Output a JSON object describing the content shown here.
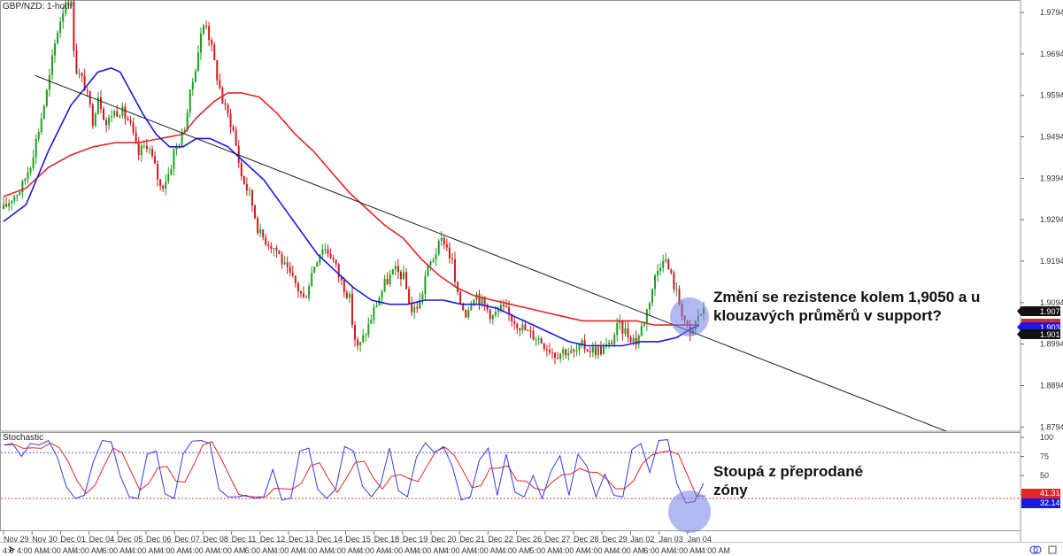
{
  "chart_data": [
    {
      "type": "candlestick",
      "title": "GBP/NZD: 1-hour",
      "y_ticks": [
        1.9794,
        1.9694,
        1.9594,
        1.9494,
        1.9394,
        1.9294,
        1.9194,
        1.9094,
        1.8994,
        1.8894,
        1.8794
      ],
      "ylim": [
        1.8784,
        1.9824
      ],
      "date_labels": [
        "Nov 29",
        "Nov 30",
        "Dec 01",
        "Dec 04",
        "Dec 05",
        "Dec 06",
        "Dec 07",
        "Dec 08",
        "Dec 11",
        "Dec 12",
        "Dec 13",
        "Dec 14",
        "Dec 15",
        "Dec 18",
        "Dec 19",
        "Dec 20",
        "Dec 21",
        "Dec 22",
        "Dec 26",
        "Dec 27",
        "Dec 28",
        "Dec 29",
        "Jan 02",
        "Jan 03",
        "Jan 04"
      ],
      "time_labels": [
        "4:0",
        "4:00 AM",
        "4:00 AM",
        "4:00 AM",
        "6:00 AM",
        "4:00 AM",
        "4:00 AM",
        "4:00 AM",
        "4:00 AM",
        "6:00 AM",
        "4:00 AM",
        "4:00 AM",
        "4:00 AM",
        "4:00 AM",
        "4:00 AM",
        "4:00 AM",
        "4:00 AM",
        "4:00 AM",
        "4:00 AM",
        "5:00 AM",
        "4:00 AM",
        "4:00 AM",
        "4:00 AM",
        "6:00 AM",
        "4:00 AM",
        "4:00 AM"
      ],
      "close_path": [
        [
          0,
          1.932
        ],
        [
          2,
          1.935
        ],
        [
          4,
          1.937
        ],
        [
          6,
          1.943
        ],
        [
          8,
          1.952
        ],
        [
          10,
          1.962
        ],
        [
          11,
          1.969
        ],
        [
          12,
          1.975
        ],
        [
          13,
          1.979
        ],
        [
          14,
          1.983
        ],
        [
          15,
          1.982
        ],
        [
          16,
          1.966
        ],
        [
          18,
          1.962
        ],
        [
          20,
          1.953
        ],
        [
          21,
          1.96
        ],
        [
          23,
          1.952
        ],
        [
          24,
          1.955
        ],
        [
          26,
          1.956
        ],
        [
          28,
          1.953
        ],
        [
          30,
          1.945
        ],
        [
          32,
          1.948
        ],
        [
          34,
          1.941
        ],
        [
          35,
          1.937
        ],
        [
          37,
          1.941
        ],
        [
          38,
          1.946
        ],
        [
          40,
          1.95
        ],
        [
          42,
          1.962
        ],
        [
          44,
          1.974
        ],
        [
          45,
          1.978
        ],
        [
          47,
          1.967
        ],
        [
          49,
          1.957
        ],
        [
          51,
          1.952
        ],
        [
          53,
          1.94
        ],
        [
          55,
          1.935
        ],
        [
          57,
          1.926
        ],
        [
          59,
          1.924
        ],
        [
          61,
          1.922
        ],
        [
          63,
          1.917
        ],
        [
          65,
          1.914
        ],
        [
          67,
          1.91
        ],
        [
          69,
          1.918
        ],
        [
          71,
          1.923
        ],
        [
          73,
          1.921
        ],
        [
          75,
          1.915
        ],
        [
          77,
          1.911
        ],
        [
          78,
          1.902
        ],
        [
          79,
          1.898
        ],
        [
          81,
          1.903
        ],
        [
          83,
          1.909
        ],
        [
          85,
          1.914
        ],
        [
          87,
          1.917
        ],
        [
          89,
          1.916
        ],
        [
          91,
          1.907
        ],
        [
          93,
          1.91
        ],
        [
          94,
          1.916
        ],
        [
          96,
          1.921
        ],
        [
          98,
          1.925
        ],
        [
          100,
          1.919
        ],
        [
          101,
          1.911
        ],
        [
          103,
          1.907
        ],
        [
          105,
          1.912
        ],
        [
          107,
          1.909
        ],
        [
          109,
          1.906
        ],
        [
          111,
          1.908
        ],
        [
          113,
          1.906
        ],
        [
          115,
          1.904
        ],
        [
          117,
          1.902
        ],
        [
          119,
          1.901
        ],
        [
          121,
          1.899
        ],
        [
          123,
          1.897
        ],
        [
          125,
          1.898
        ],
        [
          127,
          1.897
        ],
        [
          129,
          1.899
        ],
        [
          131,
          1.898
        ],
        [
          133,
          1.898
        ],
        [
          135,
          1.899
        ],
        [
          137,
          1.904
        ],
        [
          139,
          1.902
        ],
        [
          141,
          1.9
        ],
        [
          143,
          1.906
        ],
        [
          145,
          1.915
        ],
        [
          147,
          1.921
        ],
        [
          149,
          1.915
        ],
        [
          151,
          1.908
        ],
        [
          153,
          1.901
        ],
        [
          155,
          1.907
        ],
        [
          156,
          1.907
        ]
      ],
      "moving_average_1": [
        [
          0,
          1.929
        ],
        [
          5,
          1.933
        ],
        [
          10,
          1.946
        ],
        [
          15,
          1.957
        ],
        [
          18,
          1.961
        ],
        [
          21,
          1.965
        ],
        [
          24,
          1.966
        ],
        [
          26,
          1.965
        ],
        [
          28,
          1.961
        ],
        [
          31,
          1.955
        ],
        [
          34,
          1.95
        ],
        [
          37,
          1.947
        ],
        [
          40,
          1.947
        ],
        [
          43,
          1.949
        ],
        [
          46,
          1.949
        ],
        [
          50,
          1.947
        ],
        [
          54,
          1.943
        ],
        [
          58,
          1.939
        ],
        [
          62,
          1.933
        ],
        [
          66,
          1.927
        ],
        [
          70,
          1.921
        ],
        [
          74,
          1.917
        ],
        [
          78,
          1.913
        ],
        [
          82,
          1.91
        ],
        [
          86,
          1.909
        ],
        [
          90,
          1.909
        ],
        [
          94,
          1.91
        ],
        [
          98,
          1.91
        ],
        [
          102,
          1.909
        ],
        [
          106,
          1.909
        ],
        [
          110,
          1.908
        ],
        [
          114,
          1.906
        ],
        [
          118,
          1.904
        ],
        [
          122,
          1.902
        ],
        [
          126,
          1.9
        ],
        [
          130,
          1.899
        ],
        [
          134,
          1.899
        ],
        [
          138,
          1.899
        ],
        [
          142,
          1.9
        ],
        [
          146,
          1.9
        ],
        [
          150,
          1.901
        ],
        [
          153,
          1.903
        ],
        [
          155,
          1.904
        ]
      ],
      "moving_average_2": [
        [
          0,
          1.935
        ],
        [
          5,
          1.937
        ],
        [
          10,
          1.942
        ],
        [
          15,
          1.945
        ],
        [
          20,
          1.947
        ],
        [
          25,
          1.948
        ],
        [
          30,
          1.948
        ],
        [
          35,
          1.949
        ],
        [
          40,
          1.95
        ],
        [
          43,
          1.954
        ],
        [
          47,
          1.958
        ],
        [
          50,
          1.96
        ],
        [
          53,
          1.96
        ],
        [
          57,
          1.959
        ],
        [
          61,
          1.955
        ],
        [
          65,
          1.95
        ],
        [
          69,
          1.946
        ],
        [
          73,
          1.941
        ],
        [
          77,
          1.936
        ],
        [
          81,
          1.932
        ],
        [
          85,
          1.928
        ],
        [
          89,
          1.925
        ],
        [
          93,
          1.92
        ],
        [
          97,
          1.916
        ],
        [
          101,
          1.913
        ],
        [
          105,
          1.911
        ],
        [
          109,
          1.91
        ],
        [
          113,
          1.909
        ],
        [
          117,
          1.908
        ],
        [
          121,
          1.907
        ],
        [
          125,
          1.906
        ],
        [
          129,
          1.905
        ],
        [
          133,
          1.905
        ],
        [
          137,
          1.905
        ],
        [
          141,
          1.905
        ],
        [
          145,
          1.904
        ],
        [
          149,
          1.904
        ],
        [
          152,
          1.904
        ],
        [
          155,
          1.904
        ]
      ],
      "trendline": [
        [
          7,
          1.9642
        ],
        [
          210,
          1.8784
        ]
      ],
      "price_badges": [
        {
          "value": "1.9073",
          "color": "#111111"
        },
        {
          "value": "1.9031",
          "color": "#1a1adc"
        },
        {
          "value": "1.9015",
          "color": "#111111"
        }
      ],
      "annotation_lines": [
        "Změní se rezistence kolem 1,9050 a u",
        "klouzavých průměrů v support?"
      ]
    },
    {
      "type": "line",
      "title": "Stochastic",
      "y_ticks": [
        100,
        75,
        50,
        25
      ],
      "ylim": [
        -23,
        107
      ],
      "levels": [
        80,
        20
      ],
      "stoch_k": [
        [
          0,
          90
        ],
        [
          2,
          92
        ],
        [
          4,
          75
        ],
        [
          6,
          92
        ],
        [
          8,
          90
        ],
        [
          10,
          96
        ],
        [
          12,
          74
        ],
        [
          14,
          35
        ],
        [
          16,
          20
        ],
        [
          18,
          24
        ],
        [
          20,
          68
        ],
        [
          22,
          96
        ],
        [
          24,
          94
        ],
        [
          26,
          50
        ],
        [
          28,
          22
        ],
        [
          30,
          20
        ],
        [
          32,
          78
        ],
        [
          34,
          82
        ],
        [
          36,
          26
        ],
        [
          38,
          20
        ],
        [
          40,
          78
        ],
        [
          42,
          95
        ],
        [
          44,
          96
        ],
        [
          46,
          92
        ],
        [
          48,
          32
        ],
        [
          50,
          22
        ],
        [
          52,
          22
        ],
        [
          54,
          24
        ],
        [
          56,
          20
        ],
        [
          58,
          22
        ],
        [
          60,
          58
        ],
        [
          62,
          18
        ],
        [
          64,
          20
        ],
        [
          66,
          82
        ],
        [
          68,
          86
        ],
        [
          70,
          32
        ],
        [
          72,
          20
        ],
        [
          74,
          32
        ],
        [
          76,
          88
        ],
        [
          78,
          82
        ],
        [
          80,
          36
        ],
        [
          82,
          22
        ],
        [
          84,
          38
        ],
        [
          86,
          86
        ],
        [
          88,
          30
        ],
        [
          90,
          22
        ],
        [
          92,
          74
        ],
        [
          94,
          93
        ],
        [
          96,
          80
        ],
        [
          98,
          88
        ],
        [
          100,
          62
        ],
        [
          102,
          18
        ],
        [
          104,
          22
        ],
        [
          106,
          70
        ],
        [
          108,
          86
        ],
        [
          110,
          24
        ],
        [
          112,
          78
        ],
        [
          114,
          28
        ],
        [
          116,
          22
        ],
        [
          118,
          50
        ],
        [
          120,
          20
        ],
        [
          122,
          56
        ],
        [
          124,
          76
        ],
        [
          126,
          24
        ],
        [
          128,
          78
        ],
        [
          130,
          62
        ],
        [
          132,
          22
        ],
        [
          134,
          52
        ],
        [
          136,
          24
        ],
        [
          138,
          22
        ],
        [
          140,
          84
        ],
        [
          142,
          92
        ],
        [
          144,
          54
        ],
        [
          146,
          96
        ],
        [
          148,
          97
        ],
        [
          150,
          40
        ],
        [
          152,
          14
        ],
        [
          154,
          16
        ],
        [
          156,
          40
        ]
      ],
      "stoch_k_label": "41.31",
      "stoch_d_label": "32.14",
      "annotation_lines": [
        "Stoupá z přeprodané",
        "zóny"
      ]
    }
  ],
  "colors": {
    "bull": "#1f9e1f",
    "bear": "#cc1c1c",
    "ma_blue": "#1a1adc",
    "ma_red": "#e22626",
    "stoch_red": "#e22626",
    "stoch_blue": "#3a3ae0",
    "trend": "#222222",
    "highlight": "#6f7fe6"
  }
}
